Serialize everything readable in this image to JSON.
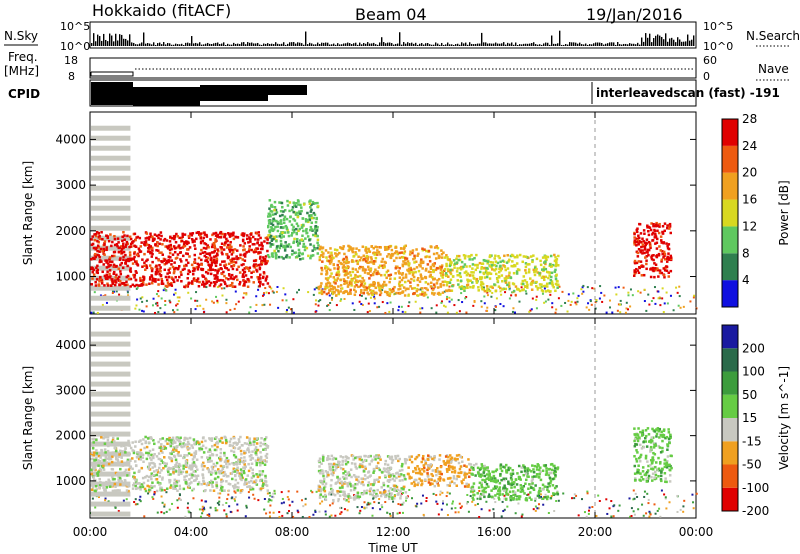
{
  "header": {
    "station": "Hokkaido (fitACF)",
    "beam": "Beam 04",
    "date": "19/Jan/2016"
  },
  "strip_labels": {
    "nsky": "N.Sky",
    "nsearch": "N.Search",
    "freq": "Freq.",
    "freq_unit": "[MHz]",
    "nave": "Nave",
    "cpid": "CPID",
    "cpid_text": "interleavedscan (fast)  -191"
  },
  "strip_ticks": {
    "noise_left": [
      "10^5",
      "10^0"
    ],
    "noise_right": [
      "10^5",
      "10^0"
    ],
    "freq": [
      "18",
      "8"
    ],
    "nave": [
      "60",
      "0"
    ]
  },
  "chart_data": [
    {
      "type": "heatmap",
      "quantity": "Power",
      "ylabel": "Slant Range [km]",
      "yticks": [
        1000,
        2000,
        3000,
        4000
      ],
      "ylim": [
        180,
        4600
      ],
      "colorbar_label": "Power [dB]",
      "colorbar_ticks": [
        "4",
        "8",
        "12",
        "16",
        "20",
        "24",
        "28"
      ],
      "colors": [
        "#1010e0",
        "#2f7f4f",
        "#5fc85f",
        "#d8d820",
        "#f0a020",
        "#ee5a10",
        "#e00000"
      ],
      "regions": [
        {
          "t0": 0.0,
          "t1": 1.6,
          "r0": 300,
          "r1": 4300,
          "level": "gs"
        },
        {
          "t0": 0.0,
          "t1": 7.0,
          "r0": 800,
          "r1": 2000,
          "level": 28
        },
        {
          "t0": 7.0,
          "t1": 9.0,
          "r0": 1400,
          "r1": 2700,
          "level": 12
        },
        {
          "t0": 9.0,
          "t1": 14.0,
          "r0": 600,
          "r1": 1700,
          "level": 20
        },
        {
          "t0": 14.0,
          "t1": 18.5,
          "r0": 700,
          "r1": 1500,
          "level": 16
        },
        {
          "t0": 21.5,
          "t1": 23.0,
          "r0": 1000,
          "r1": 2200,
          "level": 28
        }
      ]
    },
    {
      "type": "heatmap",
      "quantity": "Velocity",
      "ylabel": "Slant Range [km]",
      "yticks": [
        1000,
        2000,
        3000,
        4000
      ],
      "ylim": [
        180,
        4600
      ],
      "xlabel": "Time UT",
      "xticks": [
        "00:00",
        "04:00",
        "08:00",
        "12:00",
        "16:00",
        "20:00",
        "00:00"
      ],
      "colorbar_label": "Velocity [m s^-1]",
      "colorbar_ticks": [
        "200",
        "100",
        "50",
        "15",
        "-15",
        "-50",
        "-100",
        "-200"
      ],
      "colors": [
        "#1a1aa0",
        "#2a6a4a",
        "#3c9c3c",
        "#66cc44",
        "#c8c8c0",
        "#f0a020",
        "#ee5a10",
        "#e00000"
      ],
      "regions": [
        {
          "t0": 0.0,
          "t1": 1.6,
          "r0": 300,
          "r1": 4300,
          "level": "gs"
        },
        {
          "t0": 0.0,
          "t1": 7.0,
          "r0": 800,
          "r1": 2000,
          "level": 0
        },
        {
          "t0": 9.0,
          "t1": 12.5,
          "r0": 600,
          "r1": 1600,
          "level": 0
        },
        {
          "t0": 12.5,
          "t1": 15.0,
          "r0": 900,
          "r1": 1600,
          "level": -50
        },
        {
          "t0": 15.0,
          "t1": 18.5,
          "r0": 600,
          "r1": 1400,
          "level": 15
        },
        {
          "t0": 21.5,
          "t1": 23.0,
          "r0": 1000,
          "r1": 2200,
          "level": 15
        }
      ]
    }
  ]
}
